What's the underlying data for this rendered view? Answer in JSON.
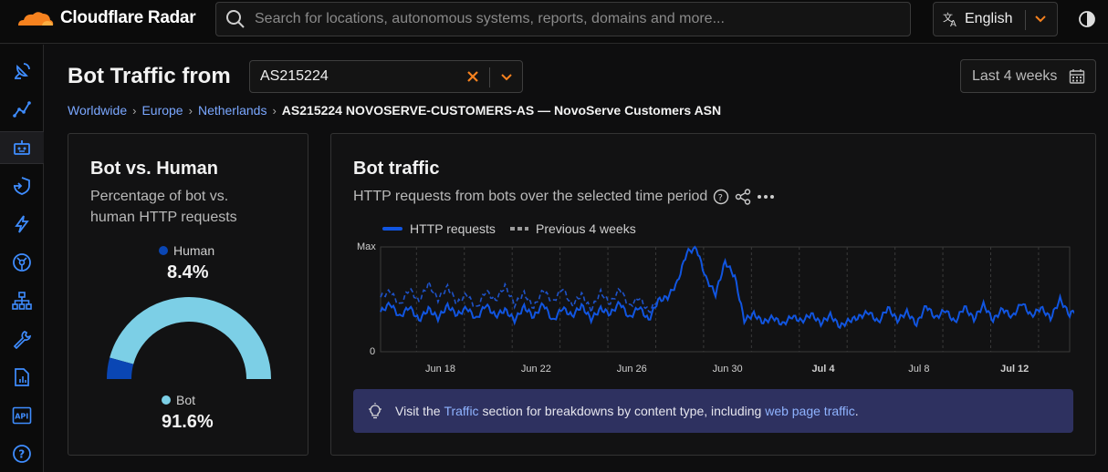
{
  "header": {
    "brand": "Cloudflare Radar",
    "search_placeholder": "Search for locations, autonomous systems, reports, domains and more...",
    "language": "English"
  },
  "sidebar": {
    "items": [
      {
        "name": "satellite-dish-icon"
      },
      {
        "name": "line-chart-icon"
      },
      {
        "name": "robot-icon",
        "active": true
      },
      {
        "name": "shield-arrow-icon"
      },
      {
        "name": "lightning-icon"
      },
      {
        "name": "globe-network-icon"
      },
      {
        "name": "hierarchy-icon"
      },
      {
        "name": "wrench-icon"
      },
      {
        "name": "report-file-icon"
      },
      {
        "name": "api-icon"
      },
      {
        "name": "help-icon"
      }
    ]
  },
  "page": {
    "title": "Bot Traffic from",
    "asn_value": "AS215224",
    "date_range": "Last 4 weeks"
  },
  "breadcrumb": {
    "items": [
      "Worldwide",
      "Europe",
      "Netherlands"
    ],
    "current": "AS215224 NOVOSERVE-CUSTOMERS-AS — NovoServe Customers ASN"
  },
  "bot_vs_human": {
    "title": "Bot vs. Human",
    "subtitle_line1": "Percentage of bot vs.",
    "subtitle_line2": "human HTTP requests",
    "human_label": "Human",
    "human_value": "8.4%",
    "bot_label": "Bot",
    "bot_value": "91.6%",
    "human_color": "#0a46b4",
    "bot_color": "#7ccfe6"
  },
  "bot_traffic": {
    "title": "Bot traffic",
    "subtitle": "HTTP requests from bots over the selected time period",
    "callout_prefix": "Visit the ",
    "callout_link1": "Traffic",
    "callout_middle": " section for breakdowns by content type, including ",
    "callout_link2": "web page traffic",
    "callout_suffix": "."
  },
  "chart_data": {
    "type": "line",
    "title": "Bot traffic",
    "y_labels": [
      "Max",
      "0"
    ],
    "x_ticks": [
      {
        "label": "Jun 18",
        "bold": false
      },
      {
        "label": "Jun 22",
        "bold": false
      },
      {
        "label": "Jun 26",
        "bold": false
      },
      {
        "label": "Jun 30",
        "bold": false
      },
      {
        "label": "Jul 4",
        "bold": true
      },
      {
        "label": "Jul 8",
        "bold": false
      },
      {
        "label": "Jul 12",
        "bold": true
      }
    ],
    "x_range_days": [
      0,
      28.8
    ],
    "x_tick_days": [
      2.5,
      6.5,
      10.5,
      14.5,
      18.5,
      22.5,
      26.5
    ],
    "series": [
      {
        "name": "HTTP requests",
        "style": "solid",
        "color": "#1155e0",
        "x_step_days": 0.4,
        "values": [
          0.38,
          0.46,
          0.33,
          0.43,
          0.3,
          0.41,
          0.32,
          0.44,
          0.35,
          0.42,
          0.31,
          0.45,
          0.34,
          0.4,
          0.3,
          0.43,
          0.33,
          0.46,
          0.29,
          0.42,
          0.34,
          0.44,
          0.31,
          0.41,
          0.36,
          0.47,
          0.32,
          0.43,
          0.3,
          0.49,
          0.52,
          0.66,
          0.95,
          0.99,
          0.7,
          0.55,
          0.86,
          0.72,
          0.3,
          0.36,
          0.28,
          0.33,
          0.26,
          0.34,
          0.29,
          0.36,
          0.27,
          0.35,
          0.24,
          0.3,
          0.33,
          0.38,
          0.28,
          0.42,
          0.3,
          0.38,
          0.26,
          0.44,
          0.32,
          0.4,
          0.28,
          0.43,
          0.31,
          0.45,
          0.3,
          0.41,
          0.33,
          0.47,
          0.34,
          0.42,
          0.32,
          0.5,
          0.35,
          0.44,
          0.33,
          0.45
        ]
      },
      {
        "name": "Previous 4 weeks",
        "style": "dashed",
        "color": "#1e52c8",
        "x_step_days": 0.4,
        "values": [
          0.52,
          0.58,
          0.44,
          0.6,
          0.48,
          0.65,
          0.5,
          0.62,
          0.46,
          0.55,
          0.41,
          0.58,
          0.49,
          0.63,
          0.45,
          0.56,
          0.42,
          0.59,
          0.47,
          0.61,
          0.44,
          0.55,
          0.4,
          0.57,
          0.46,
          0.6,
          0.43,
          0.52,
          0.38,
          0.5
        ]
      }
    ]
  }
}
